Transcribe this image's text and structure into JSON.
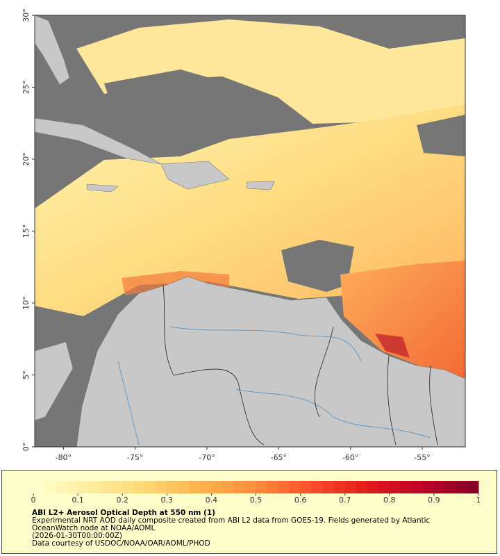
{
  "map": {
    "xlim": [
      -82,
      -52
    ],
    "ylim": [
      0,
      30
    ],
    "xticks": [
      {
        "value": -80,
        "label": "-80°"
      },
      {
        "value": -75,
        "label": "-75°"
      },
      {
        "value": -70,
        "label": "-70°"
      },
      {
        "value": -65,
        "label": "-65°"
      },
      {
        "value": -60,
        "label": "-60°"
      },
      {
        "value": -55,
        "label": "-55°"
      }
    ],
    "yticks": [
      {
        "value": 0,
        "label": "0°"
      },
      {
        "value": 5,
        "label": "5°"
      },
      {
        "value": 10,
        "label": "10°"
      },
      {
        "value": 15,
        "label": "15°"
      },
      {
        "value": 20,
        "label": "20°"
      },
      {
        "value": 25,
        "label": "25°"
      },
      {
        "value": 30,
        "label": "30°"
      }
    ]
  },
  "colorbar": {
    "lim": [
      0,
      1
    ],
    "ticks": [
      0,
      0.1,
      0.2,
      0.3,
      0.4,
      0.5,
      0.6,
      0.7,
      0.8,
      0.9,
      1
    ]
  },
  "caption": {
    "title": "ABI L2+ Aerosol Optical Depth at 550 nm (1)",
    "description": "Experimental NRT AOD daily composite created from ABI L2 data from GOES-19. Fields generated by Atlantic OceanWatch node at NOAA/AOML",
    "date": "(2026-01-30T00:00:00Z)",
    "credit": "Data courtesy of USDOC/NOAA/OAR/AOML/PHOD"
  }
}
